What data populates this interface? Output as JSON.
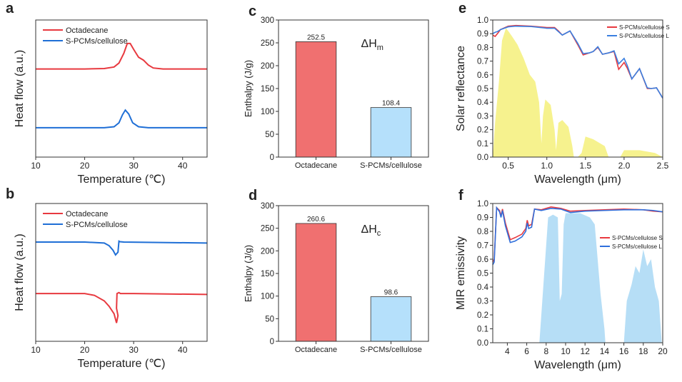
{
  "chart_data": [
    {
      "panel": "a",
      "type": "line",
      "xlabel": "Temperature (℃)",
      "ylabel": "Heat flow (a.u.)",
      "xlim": [
        10,
        45
      ],
      "ylim": [
        -1.5,
        5.5
      ],
      "xticks": [
        10,
        20,
        30,
        40
      ],
      "yticks_shown": false,
      "legend": "top-left",
      "series": [
        {
          "name": "Octadecane",
          "color": "#e8393f",
          "x": [
            10,
            20,
            24,
            26,
            27,
            28,
            28.7,
            29.3,
            30,
            31,
            32,
            33,
            34,
            36,
            45
          ],
          "y": [
            3,
            3,
            3.02,
            3.1,
            3.3,
            3.8,
            4.3,
            4.3,
            4.0,
            3.6,
            3.45,
            3.2,
            3.05,
            3,
            3
          ]
        },
        {
          "name": "S-PCMs/cellulose",
          "color": "#1f6fd6",
          "x": [
            10,
            24,
            26,
            27,
            27.7,
            28.3,
            29,
            29.8,
            31,
            33,
            45
          ],
          "y": [
            0,
            0,
            0.05,
            0.25,
            0.65,
            0.9,
            0.7,
            0.25,
            0.05,
            0,
            0
          ]
        }
      ]
    },
    {
      "panel": "b",
      "type": "line",
      "xlabel": "Temperature (℃)",
      "ylabel": "Heat flow (a.u.)",
      "xlim": [
        10,
        45
      ],
      "ylim": [
        -2,
        5.5
      ],
      "xticks": [
        10,
        20,
        30,
        40
      ],
      "yticks_shown": false,
      "legend": "top-left",
      "series": [
        {
          "name": "Octadecane",
          "color": "#e8393f",
          "x": [
            10,
            20,
            22,
            24,
            25,
            26,
            26.5,
            26.8,
            26.5,
            26.6,
            27,
            27.3,
            28,
            30,
            45
          ],
          "y": [
            0.6,
            0.6,
            0.5,
            0.2,
            -0.1,
            -0.5,
            -1.0,
            -0.6,
            -0.2,
            0.6,
            0.65,
            0.6,
            0.6,
            0.6,
            0.55
          ]
        },
        {
          "name": "S-PCMs/cellulose",
          "color": "#1f6fd6",
          "x": [
            10,
            20,
            24,
            25,
            25.8,
            26.3,
            26.8,
            27,
            27.2,
            28,
            45
          ],
          "y": [
            3.4,
            3.4,
            3.35,
            3.2,
            2.95,
            2.7,
            2.85,
            3.45,
            3.42,
            3.4,
            3.35
          ]
        }
      ]
    },
    {
      "panel": "c",
      "type": "bar",
      "ylabel": "Enthalpy (J/g)",
      "annotation": "ΔH",
      "annotation_sub": "m",
      "ylim": [
        0,
        300
      ],
      "yticks": [
        0,
        50,
        100,
        150,
        200,
        250,
        300
      ],
      "categories": [
        "Octadecane",
        "S-PCMs/cellulose"
      ],
      "values": [
        252.5,
        108.4
      ],
      "labels": [
        "252.5",
        "108.4"
      ],
      "colors": [
        "#f07070",
        "#b5e0fb"
      ]
    },
    {
      "panel": "d",
      "type": "bar",
      "ylabel": "Enthalpy (J/g)",
      "annotation": "ΔH",
      "annotation_sub": "c",
      "ylim": [
        0,
        300
      ],
      "yticks": [
        0,
        50,
        100,
        150,
        200,
        250,
        300
      ],
      "categories": [
        "Octadecane",
        "S-PCMs/cellulose"
      ],
      "values": [
        260.6,
        98.6
      ],
      "labels": [
        "260.6",
        "98.6"
      ],
      "colors": [
        "#f07070",
        "#b5e0fb"
      ]
    },
    {
      "panel": "e",
      "type": "line",
      "xlabel": "Wavelength (μm)",
      "ylabel": "Solar reflectance",
      "xlim": [
        0.3,
        2.5
      ],
      "ylim": [
        0,
        1
      ],
      "xticks": [
        0.5,
        1.0,
        1.5,
        2.0,
        2.5
      ],
      "xticklabels": [
        "0.5",
        "1.0",
        "1.5",
        "2.0",
        "2.5"
      ],
      "yticks": [
        0,
        0.1,
        0.2,
        0.3,
        0.4,
        0.5,
        0.6,
        0.7,
        0.8,
        0.9,
        1.0
      ],
      "yticklabels": [
        "0.0",
        "0.1",
        "0.2",
        "0.3",
        "0.4",
        "0.5",
        "0.6",
        "0.7",
        "0.8",
        "0.9",
        "1.0"
      ],
      "legend": "top-right",
      "background_area": {
        "color": "#f5f07a",
        "x": [
          0.3,
          0.33,
          0.38,
          0.42,
          0.47,
          0.5,
          0.55,
          0.62,
          0.7,
          0.78,
          0.85,
          0.9,
          0.93,
          0.95,
          0.98,
          1.05,
          1.1,
          1.12,
          1.15,
          1.2,
          1.28,
          1.33,
          1.35,
          1.4,
          1.45,
          1.5,
          1.6,
          1.75,
          1.8,
          1.85,
          1.95,
          2.0,
          2.2,
          2.4,
          2.5
        ],
        "y": [
          0,
          0.25,
          0.55,
          0.85,
          0.94,
          0.92,
          0.88,
          0.82,
          0.72,
          0.6,
          0.55,
          0.4,
          0.1,
          0.3,
          0.42,
          0.38,
          0.2,
          0.05,
          0.25,
          0.27,
          0.22,
          0.08,
          0,
          0,
          0.03,
          0.15,
          0.13,
          0.08,
          0,
          0,
          0,
          0.05,
          0.05,
          0.03,
          0
        ]
      },
      "series": [
        {
          "name": "S-PCMs/cellulose S",
          "color": "#e8393f",
          "x": [
            0.3,
            0.33,
            0.36,
            0.4,
            0.5,
            0.6,
            0.8,
            1.0,
            1.1,
            1.15,
            1.2,
            1.3,
            1.4,
            1.47,
            1.55,
            1.6,
            1.66,
            1.72,
            1.8,
            1.87,
            1.93,
            2.0,
            2.04,
            2.1,
            2.2,
            2.3,
            2.35,
            2.42,
            2.5
          ],
          "y": [
            0.89,
            0.88,
            0.9,
            0.93,
            0.955,
            0.96,
            0.955,
            0.945,
            0.945,
            0.92,
            0.89,
            0.92,
            0.82,
            0.745,
            0.76,
            0.77,
            0.8,
            0.75,
            0.76,
            0.77,
            0.64,
            0.69,
            0.65,
            0.57,
            0.645,
            0.5,
            0.5,
            0.505,
            0.43
          ]
        },
        {
          "name": "S-PCMs/cellulose L",
          "color": "#3a7fe0",
          "x": [
            0.3,
            0.33,
            0.36,
            0.4,
            0.5,
            0.6,
            0.8,
            1.0,
            1.1,
            1.15,
            1.2,
            1.3,
            1.4,
            1.47,
            1.55,
            1.6,
            1.66,
            1.72,
            1.8,
            1.87,
            1.93,
            2.0,
            2.04,
            2.1,
            2.2,
            2.3,
            2.35,
            2.42,
            2.5
          ],
          "y": [
            0.9,
            0.91,
            0.915,
            0.93,
            0.95,
            0.955,
            0.952,
            0.94,
            0.94,
            0.915,
            0.89,
            0.92,
            0.83,
            0.755,
            0.76,
            0.77,
            0.805,
            0.75,
            0.76,
            0.775,
            0.68,
            0.72,
            0.67,
            0.57,
            0.645,
            0.505,
            0.5,
            0.505,
            0.43
          ]
        }
      ]
    },
    {
      "panel": "f",
      "type": "line",
      "xlabel": "Wavelength (μm)",
      "ylabel": "MIR emissivity",
      "xlim": [
        2.5,
        20
      ],
      "ylim": [
        0,
        1
      ],
      "xticks": [
        4,
        6,
        8,
        10,
        12,
        14,
        16,
        18,
        20
      ],
      "xticklabels": [
        "4",
        "6",
        "8",
        "10",
        "12",
        "14",
        "16",
        "18",
        "20"
      ],
      "yticks": [
        0,
        0.1,
        0.2,
        0.3,
        0.4,
        0.5,
        0.6,
        0.7,
        0.8,
        0.9,
        1.0
      ],
      "yticklabels": [
        "0.0",
        "0.1",
        "0.2",
        "0.3",
        "0.4",
        "0.5",
        "0.6",
        "0.7",
        "0.8",
        "0.9",
        "1.0"
      ],
      "legend": "center-right",
      "background_area": {
        "color": "#a9d8f5",
        "x": [
          7.3,
          7.6,
          7.9,
          8.2,
          8.7,
          9.2,
          9.4,
          9.6,
          9.8,
          10.0,
          10.5,
          11.5,
          12.5,
          13.0,
          13.3,
          13.6,
          14.0,
          14.1,
          16.0,
          16.3,
          16.8,
          17.2,
          17.6,
          18.0,
          18.4,
          18.8,
          19.2,
          19.6,
          19.9
        ],
        "y": [
          0,
          0.3,
          0.6,
          0.9,
          0.92,
          0.9,
          0.3,
          0.35,
          0.85,
          0.93,
          0.93,
          0.93,
          0.9,
          0.85,
          0.6,
          0.35,
          0.1,
          0,
          0,
          0.3,
          0.42,
          0.55,
          0.5,
          0.67,
          0.55,
          0.6,
          0.4,
          0.3,
          0
        ]
      },
      "series": [
        {
          "name": "S-PCMs/cellulose S",
          "color": "#e8393f",
          "x": [
            2.5,
            2.65,
            2.9,
            3.2,
            3.35,
            3.5,
            3.8,
            4.3,
            4.8,
            5.5,
            5.9,
            6.05,
            6.2,
            6.5,
            6.8,
            7.5,
            8.5,
            9.5,
            10.5,
            12,
            14,
            16,
            18,
            19,
            20
          ],
          "y": [
            0.58,
            0.6,
            0.97,
            0.95,
            0.91,
            0.96,
            0.86,
            0.74,
            0.755,
            0.78,
            0.82,
            0.88,
            0.84,
            0.85,
            0.96,
            0.955,
            0.975,
            0.965,
            0.945,
            0.95,
            0.955,
            0.96,
            0.955,
            0.945,
            0.94
          ]
        },
        {
          "name": "S-PCMs/cellulose L",
          "color": "#2f6fdc",
          "x": [
            2.5,
            2.65,
            2.9,
            3.2,
            3.35,
            3.5,
            3.8,
            4.3,
            4.8,
            5.5,
            5.9,
            6.05,
            6.2,
            6.5,
            6.8,
            7.5,
            8.5,
            9.5,
            10.5,
            12,
            14,
            16,
            18,
            19,
            20
          ],
          "y": [
            0.56,
            0.58,
            0.97,
            0.94,
            0.9,
            0.95,
            0.84,
            0.72,
            0.73,
            0.76,
            0.8,
            0.86,
            0.82,
            0.83,
            0.96,
            0.95,
            0.965,
            0.96,
            0.935,
            0.945,
            0.95,
            0.955,
            0.955,
            0.95,
            0.94
          ]
        }
      ]
    }
  ]
}
